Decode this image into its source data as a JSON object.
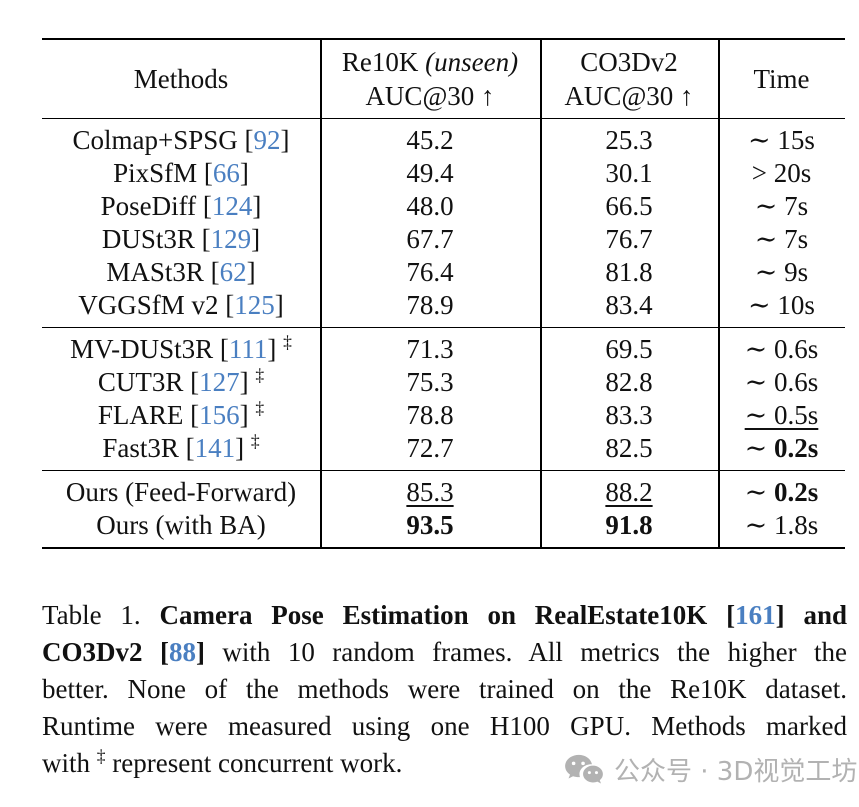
{
  "colors": {
    "cite": "#4a7fc1",
    "watermark": "#b2b2b2"
  },
  "table": {
    "header": {
      "methods": "Methods",
      "re10k": {
        "line1_prefix": "Re10K ",
        "line1_italic": "(unseen)",
        "line2": "AUC@30 ↑"
      },
      "co3d": {
        "line1": "CO3Dv2",
        "line2": "AUC@30 ↑"
      },
      "time": "Time"
    },
    "groups": [
      {
        "rows": [
          {
            "method": [
              {
                "t": "Colmap+SPSG ["
              },
              {
                "t": "92",
                "c": true
              },
              {
                "t": "]"
              }
            ],
            "cells": [
              [
                {
                  "t": "45.2"
                }
              ],
              [
                {
                  "t": "25.3"
                }
              ],
              [
                {
                  "t": "∼ 15s"
                }
              ]
            ]
          },
          {
            "method": [
              {
                "t": "PixSfM ["
              },
              {
                "t": "66",
                "c": true
              },
              {
                "t": "]"
              }
            ],
            "cells": [
              [
                {
                  "t": "49.4"
                }
              ],
              [
                {
                  "t": "30.1"
                }
              ],
              [
                {
                  "t": "> 20s"
                }
              ]
            ]
          },
          {
            "method": [
              {
                "t": "PoseDiff ["
              },
              {
                "t": "124",
                "c": true
              },
              {
                "t": "]"
              }
            ],
            "cells": [
              [
                {
                  "t": "48.0"
                }
              ],
              [
                {
                  "t": "66.5"
                }
              ],
              [
                {
                  "t": "∼ 7s"
                }
              ]
            ]
          },
          {
            "method": [
              {
                "t": "DUSt3R ["
              },
              {
                "t": "129",
                "c": true
              },
              {
                "t": "]"
              }
            ],
            "cells": [
              [
                {
                  "t": "67.7"
                }
              ],
              [
                {
                  "t": "76.7"
                }
              ],
              [
                {
                  "t": "∼ 7s"
                }
              ]
            ]
          },
          {
            "method": [
              {
                "t": "MASt3R ["
              },
              {
                "t": "62",
                "c": true
              },
              {
                "t": "]"
              }
            ],
            "cells": [
              [
                {
                  "t": "76.4"
                }
              ],
              [
                {
                  "t": "81.8"
                }
              ],
              [
                {
                  "t": "∼ 9s"
                }
              ]
            ]
          },
          {
            "method": [
              {
                "t": "VGGSfM v2 ["
              },
              {
                "t": "125",
                "c": true
              },
              {
                "t": "]"
              }
            ],
            "cells": [
              [
                {
                  "t": "78.9"
                }
              ],
              [
                {
                  "t": "83.4"
                }
              ],
              [
                {
                  "t": "∼ 10s"
                }
              ]
            ]
          }
        ]
      },
      {
        "rows": [
          {
            "method": [
              {
                "t": "MV-DUSt3R ["
              },
              {
                "t": "111",
                "c": true
              },
              {
                "t": "] "
              },
              {
                "t": "‡",
                "sup": true
              }
            ],
            "cells": [
              [
                {
                  "t": "71.3"
                }
              ],
              [
                {
                  "t": "69.5"
                }
              ],
              [
                {
                  "t": "∼ 0.6s"
                }
              ]
            ]
          },
          {
            "method": [
              {
                "t": "CUT3R ["
              },
              {
                "t": "127",
                "c": true
              },
              {
                "t": "] "
              },
              {
                "t": "‡",
                "sup": true
              }
            ],
            "cells": [
              [
                {
                  "t": "75.3"
                }
              ],
              [
                {
                  "t": "82.8"
                }
              ],
              [
                {
                  "t": "∼ 0.6s"
                }
              ]
            ]
          },
          {
            "method": [
              {
                "t": "FLARE ["
              },
              {
                "t": "156",
                "c": true
              },
              {
                "t": "] "
              },
              {
                "t": "‡",
                "sup": true
              }
            ],
            "cells": [
              [
                {
                  "t": "78.8"
                }
              ],
              [
                {
                  "t": "83.3"
                }
              ],
              [
                {
                  "t": "∼ 0.5s",
                  "u": true
                }
              ]
            ]
          },
          {
            "method": [
              {
                "t": "Fast3R ["
              },
              {
                "t": "141",
                "c": true
              },
              {
                "t": "] "
              },
              {
                "t": "‡",
                "sup": true
              }
            ],
            "cells": [
              [
                {
                  "t": "72.7"
                }
              ],
              [
                {
                  "t": "82.5"
                }
              ],
              [
                {
                  "t": "∼ "
                },
                {
                  "t": "0.2s",
                  "b": true
                }
              ]
            ]
          }
        ]
      },
      {
        "rows": [
          {
            "method": [
              {
                "t": "Ours (Feed-Forward)"
              }
            ],
            "cells": [
              [
                {
                  "t": "85.3",
                  "u": true
                }
              ],
              [
                {
                  "t": "88.2",
                  "u": true
                }
              ],
              [
                {
                  "t": "∼ "
                },
                {
                  "t": "0.2s",
                  "b": true
                }
              ]
            ]
          },
          {
            "method": [
              {
                "t": "Ours (with BA)"
              }
            ],
            "cells": [
              [
                {
                  "t": "93.5",
                  "b": true
                }
              ],
              [
                {
                  "t": "91.8",
                  "b": true
                }
              ],
              [
                {
                  "t": "∼ 1.8s"
                }
              ]
            ]
          }
        ]
      }
    ]
  },
  "caption": {
    "lines": [
      [
        {
          "t": "Table 1. "
        },
        {
          "t": "Camera Pose Estimation on RealEstate10K ",
          "b": true
        },
        {
          "t": "[",
          "b": true
        },
        {
          "t": "161",
          "b": true,
          "c": true
        },
        {
          "t": "]",
          "b": true
        },
        {
          "t": " and",
          "b": true
        }
      ],
      [
        {
          "t": "CO3Dv2 ",
          "b": true
        },
        {
          "t": "[",
          "b": true
        },
        {
          "t": "88",
          "b": true,
          "c": true
        },
        {
          "t": "]",
          "b": true
        },
        {
          "t": " with 10 random frames.  All metrics the higher the"
        }
      ],
      [
        {
          "t": "better.  None of the methods were trained on the Re10K dataset."
        }
      ],
      [
        {
          "t": "Runtime were measured using one H100 GPU.  Methods marked"
        }
      ],
      [
        {
          "t": "with "
        },
        {
          "t": "‡",
          "sup": true
        },
        {
          "t": " represent concurrent work."
        }
      ]
    ]
  },
  "watermark": {
    "label": "公众号 · 3D视觉工坊",
    "icon": "wechat-icon"
  }
}
